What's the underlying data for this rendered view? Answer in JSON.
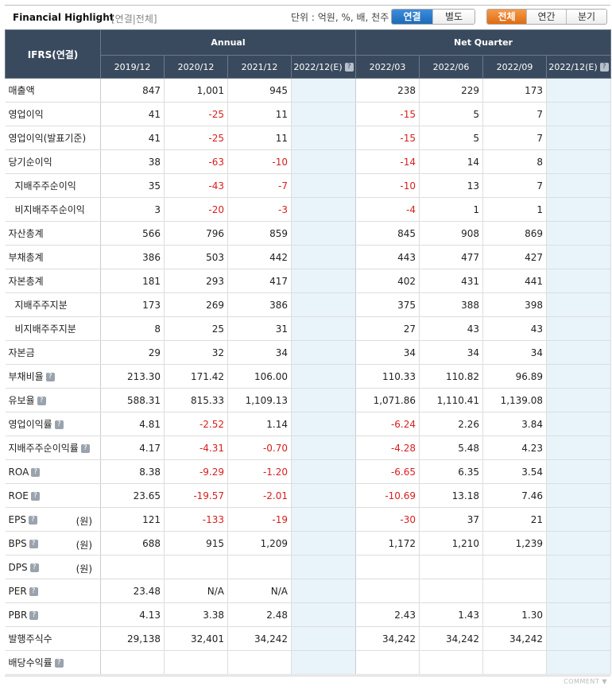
{
  "header": {
    "title": "Financial Highlight",
    "subtitle": "[연결|전체]",
    "unit": "단위 : 억원, %, 배, 천주",
    "toggle1": [
      "연결",
      "별도"
    ],
    "toggle2": [
      "전체",
      "연간",
      "분기"
    ]
  },
  "table": {
    "corner": "IFRS(연결)",
    "group_annual": "Annual",
    "group_quarter": "Net Quarter",
    "periods": [
      "2019/12",
      "2020/12",
      "2021/12",
      "2022/12(E)",
      "2022/03",
      "2022/06",
      "2022/09",
      "2022/12(E)"
    ],
    "rows": [
      {
        "label": "매출액",
        "values": [
          "847",
          "1,001",
          "945",
          "",
          "238",
          "229",
          "173",
          ""
        ]
      },
      {
        "label": "영업이익",
        "values": [
          "41",
          "-25",
          "11",
          "",
          "-15",
          "5",
          "7",
          ""
        ]
      },
      {
        "label": "영업이익(발표기준)",
        "values": [
          "41",
          "-25",
          "11",
          "",
          "-15",
          "5",
          "7",
          ""
        ]
      },
      {
        "label": "당기순이익",
        "values": [
          "38",
          "-63",
          "-10",
          "",
          "-14",
          "14",
          "8",
          ""
        ]
      },
      {
        "label": "지배주주순이익",
        "indent": true,
        "values": [
          "35",
          "-43",
          "-7",
          "",
          "-10",
          "13",
          "7",
          ""
        ]
      },
      {
        "label": "비지배주주순이익",
        "indent": true,
        "values": [
          "3",
          "-20",
          "-3",
          "",
          "-4",
          "1",
          "1",
          ""
        ]
      },
      {
        "label": "자산총계",
        "values": [
          "566",
          "796",
          "859",
          "",
          "845",
          "908",
          "869",
          ""
        ]
      },
      {
        "label": "부채총계",
        "values": [
          "386",
          "503",
          "442",
          "",
          "443",
          "477",
          "427",
          ""
        ]
      },
      {
        "label": "자본총계",
        "values": [
          "181",
          "293",
          "417",
          "",
          "402",
          "431",
          "441",
          ""
        ]
      },
      {
        "label": "지배주주지분",
        "indent": true,
        "values": [
          "173",
          "269",
          "386",
          "",
          "375",
          "388",
          "398",
          ""
        ]
      },
      {
        "label": "비지배주주지분",
        "indent": true,
        "values": [
          "8",
          "25",
          "31",
          "",
          "27",
          "43",
          "43",
          ""
        ]
      },
      {
        "label": "자본금",
        "values": [
          "29",
          "32",
          "34",
          "",
          "34",
          "34",
          "34",
          ""
        ]
      },
      {
        "label": "부채비율",
        "help": true,
        "values": [
          "213.30",
          "171.42",
          "106.00",
          "",
          "110.33",
          "110.82",
          "96.89",
          ""
        ]
      },
      {
        "label": "유보율",
        "help": true,
        "values": [
          "588.31",
          "815.33",
          "1,109.13",
          "",
          "1,071.86",
          "1,110.41",
          "1,139.08",
          ""
        ]
      },
      {
        "label": "영업이익률",
        "help": true,
        "values": [
          "4.81",
          "-2.52",
          "1.14",
          "",
          "-6.24",
          "2.26",
          "3.84",
          ""
        ]
      },
      {
        "label": "지배주주순이익률",
        "help": true,
        "values": [
          "4.17",
          "-4.31",
          "-0.70",
          "",
          "-4.28",
          "5.48",
          "4.23",
          ""
        ]
      },
      {
        "label": "ROA",
        "help": true,
        "values": [
          "8.38",
          "-9.29",
          "-1.20",
          "",
          "-6.65",
          "6.35",
          "3.54",
          ""
        ]
      },
      {
        "label": "ROE",
        "help": true,
        "values": [
          "23.65",
          "-19.57",
          "-2.01",
          "",
          "-10.69",
          "13.18",
          "7.46",
          ""
        ]
      },
      {
        "label": "EPS",
        "help": true,
        "unit": "(원)",
        "values": [
          "121",
          "-133",
          "-19",
          "",
          "-30",
          "37",
          "21",
          ""
        ]
      },
      {
        "label": "BPS",
        "help": true,
        "unit": "(원)",
        "values": [
          "688",
          "915",
          "1,209",
          "",
          "1,172",
          "1,210",
          "1,239",
          ""
        ]
      },
      {
        "label": "DPS",
        "help": true,
        "unit": "(원)",
        "values": [
          "",
          "",
          "",
          "",
          "",
          "",
          "",
          ""
        ]
      },
      {
        "label": "PER",
        "help": true,
        "values": [
          "23.48",
          "N/A",
          "N/A",
          "",
          "",
          "",
          "",
          ""
        ]
      },
      {
        "label": "PBR",
        "help": true,
        "values": [
          "4.13",
          "3.38",
          "2.48",
          "",
          "2.43",
          "1.43",
          "1.30",
          ""
        ]
      },
      {
        "label": "발행주식수",
        "values": [
          "29,138",
          "32,401",
          "34,242",
          "",
          "34,242",
          "34,242",
          "34,242",
          ""
        ]
      },
      {
        "label": "배당수익률",
        "help": true,
        "values": [
          "",
          "",
          "",
          "",
          "",
          "",
          "",
          ""
        ]
      }
    ]
  },
  "footer": {
    "comment": "COMMENT"
  },
  "colors": {
    "header_bg": "#3a4a5e",
    "estimate_bg": "#e8f4fa",
    "negative": "#d81e1e",
    "toggle_blue": "#1d6bb8",
    "toggle_orange": "#e06c10"
  }
}
